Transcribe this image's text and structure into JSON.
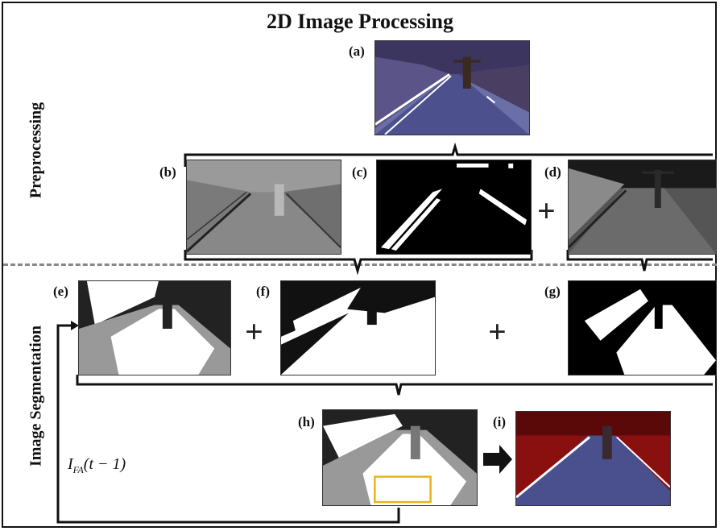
{
  "title": "2D Image Processing",
  "sections": {
    "preprocessing": "Preprocessing",
    "segmentation": "Image Segmentation"
  },
  "panels": {
    "a": "(a)",
    "b": "(b)",
    "c": "(c)",
    "d": "(d)",
    "e": "(e)",
    "f": "(f)",
    "g": "(g)",
    "h": "(h)",
    "i": "(i)"
  },
  "operators": {
    "plus": "+"
  },
  "feedback": {
    "symbol": "I",
    "subscript": "FA",
    "argument": "(t − 1)"
  },
  "colors": {
    "road_blue": "#4b4f8a",
    "lane_white": "#ffffff",
    "roi_box": "#e8b21a",
    "mask_gray": "#8a8a8a",
    "overlay_red": "#c01818"
  }
}
